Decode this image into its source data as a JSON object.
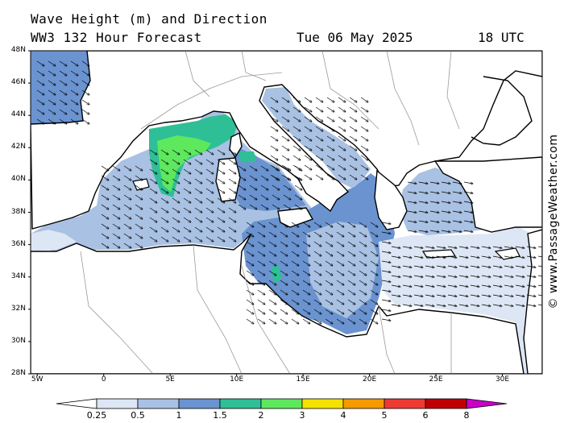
{
  "header": {
    "title": "Wave Height (m) and Direction",
    "subtitle": "WW3 132 Hour Forecast",
    "date": "Tue 06 May 2025",
    "time": "18 UTC"
  },
  "credit": "© www.PassageWeather.com",
  "map": {
    "lat_labels": [
      "48N",
      "46N",
      "44N",
      "42N",
      "40N",
      "38N",
      "36N",
      "34N",
      "32N",
      "30N",
      "28N"
    ],
    "lon_labels": [
      "5W",
      "0",
      "5E",
      "10E",
      "15E",
      "20E",
      "25E",
      "30E"
    ],
    "lat_range": [
      28,
      48
    ],
    "lon_range": [
      -5.5,
      33
    ],
    "arrow_direction": "mostly from north-west"
  },
  "legend": {
    "labels": [
      "0.25",
      "0.5",
      "1",
      "1.5",
      "2",
      "3",
      "4",
      "5",
      "6",
      "8"
    ],
    "colors": [
      "#ffffff",
      "#dde6f4",
      "#a9c1e3",
      "#6a93d0",
      "#2fbf96",
      "#5ee85e",
      "#f5e100",
      "#f59a00",
      "#ee3a32",
      "#c00000",
      "#c800c8"
    ]
  },
  "colors": {
    "land": "#ffffff",
    "coast": "#000000",
    "border": "#9a9a9a"
  }
}
